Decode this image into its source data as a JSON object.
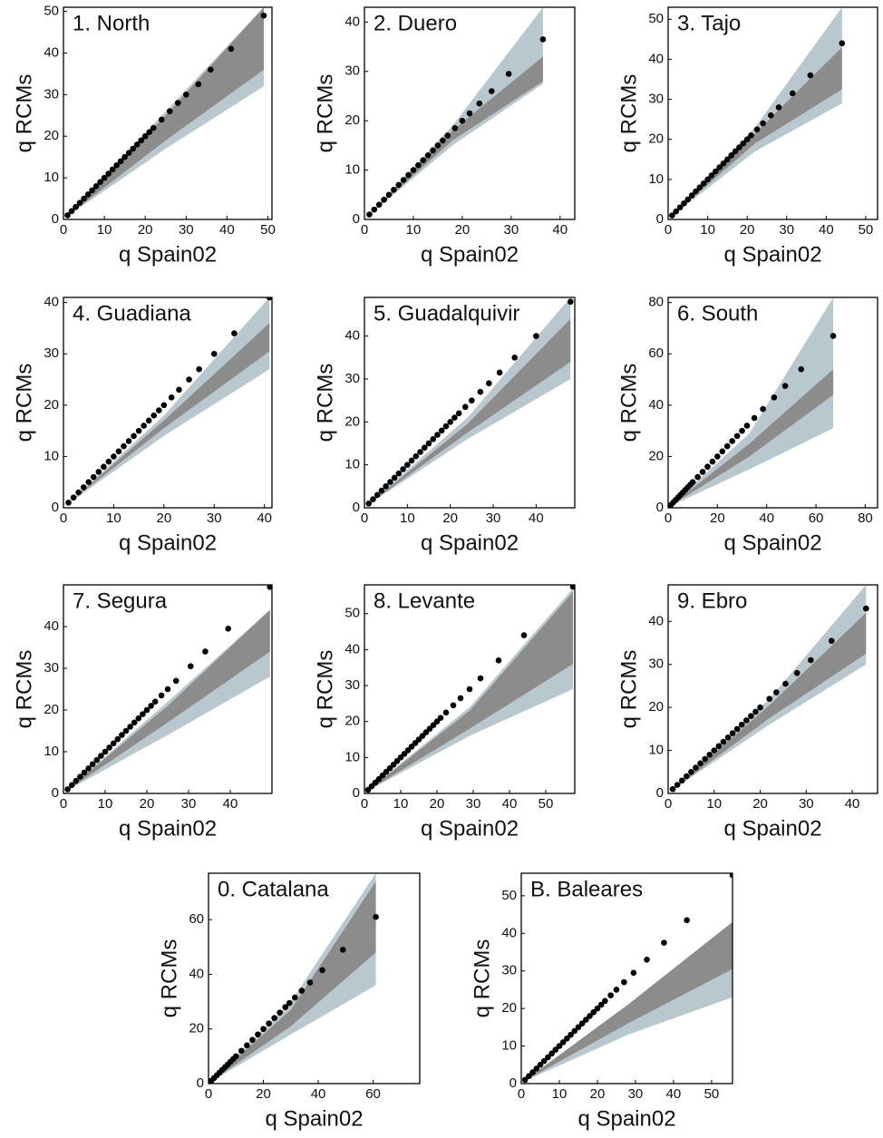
{
  "chart_data": [
    {
      "type": "scatter",
      "title": "1. North",
      "xlabel": "q Spain02",
      "ylabel": "q RCMs",
      "xlim": [
        0,
        51
      ],
      "ylim": [
        0,
        51
      ],
      "xticks": [
        0,
        10,
        20,
        30,
        40,
        50
      ],
      "yticks": [
        0,
        10,
        20,
        30,
        40,
        50
      ],
      "color": "#000000",
      "x": [
        1,
        2,
        3,
        4,
        5,
        6,
        7,
        8,
        9,
        10,
        11,
        12,
        13,
        14,
        15,
        16,
        17,
        18,
        19,
        20,
        21,
        22,
        24,
        26,
        28,
        30,
        33,
        36,
        41,
        49
      ],
      "y": [
        1,
        2,
        3,
        4,
        5,
        6,
        7,
        8,
        9,
        10,
        11,
        12,
        13,
        14,
        15,
        16,
        17,
        18,
        19,
        20,
        21,
        22,
        24,
        26,
        28,
        30,
        32.5,
        36,
        41,
        49
      ],
      "bands": [
        {
          "color": "#b9c8cf",
          "x": [
            0.5,
            25,
            49
          ],
          "lower": [
            0.5,
            17,
            32
          ],
          "upper": [
            0.5,
            26,
            51
          ]
        },
        {
          "color": "#8c8c8c",
          "x": [
            0.5,
            25,
            49
          ],
          "lower": [
            0.5,
            19,
            36
          ],
          "upper": [
            0.5,
            25,
            51
          ]
        }
      ]
    },
    {
      "type": "scatter",
      "title": "2. Duero",
      "xlabel": "q Spain02",
      "ylabel": "q RCMs",
      "xlim": [
        0,
        43
      ],
      "ylim": [
        0,
        43
      ],
      "xticks": [
        0,
        10,
        20,
        30,
        40
      ],
      "yticks": [
        0,
        10,
        20,
        30,
        40
      ],
      "color": "#000000",
      "x": [
        1,
        2,
        3,
        4,
        5,
        6,
        7,
        8,
        9,
        10,
        11,
        12,
        13,
        14,
        15,
        16,
        17,
        18.5,
        20,
        21.5,
        23.5,
        26,
        29.5,
        36.5
      ],
      "y": [
        1,
        2,
        3,
        4,
        5,
        6,
        7,
        8,
        9,
        10,
        11,
        12,
        13,
        14,
        15,
        16,
        17,
        18.5,
        20,
        21.5,
        23.5,
        26,
        29.5,
        36.5
      ],
      "bands": [
        {
          "color": "#b9c8cf",
          "x": [
            0.5,
            18,
            36.5
          ],
          "lower": [
            0.5,
            15,
            27.5
          ],
          "upper": [
            0.5,
            19,
            43
          ]
        },
        {
          "color": "#8c8c8c",
          "x": [
            0.5,
            18,
            36.5
          ],
          "lower": [
            0.5,
            16,
            28
          ],
          "upper": [
            0.5,
            18,
            33
          ]
        }
      ]
    },
    {
      "type": "scatter",
      "title": "3. Tajo",
      "xlabel": "q Spain02",
      "ylabel": "q RCMs",
      "xlim": [
        0,
        53
      ],
      "ylim": [
        0,
        53
      ],
      "xticks": [
        0,
        10,
        20,
        30,
        40,
        50
      ],
      "yticks": [
        0,
        10,
        20,
        30,
        40,
        50
      ],
      "color": "#000000",
      "x": [
        1,
        2,
        3,
        4,
        5,
        6,
        7,
        8,
        9,
        10,
        11,
        12,
        13,
        14,
        15,
        16,
        17,
        18,
        19,
        20,
        21,
        22.5,
        24,
        26,
        28,
        31.5,
        36,
        44
      ],
      "y": [
        1,
        2,
        3,
        4,
        5,
        6,
        7,
        8,
        9,
        10,
        11,
        12,
        13,
        14,
        15,
        16,
        17,
        18,
        19,
        20,
        21,
        22.5,
        24,
        26,
        28,
        31.5,
        36,
        44
      ],
      "bands": [
        {
          "color": "#b9c8cf",
          "x": [
            0.5,
            22,
            44
          ],
          "lower": [
            0.5,
            17,
            29
          ],
          "upper": [
            0.5,
            23,
            53
          ]
        },
        {
          "color": "#8c8c8c",
          "x": [
            0.5,
            22,
            44
          ],
          "lower": [
            0.5,
            19,
            32.5
          ],
          "upper": [
            0.5,
            21.5,
            43
          ]
        }
      ]
    },
    {
      "type": "scatter",
      "title": "4. Guadiana",
      "xlabel": "q Spain02",
      "ylabel": "q RCMs",
      "xlim": [
        0,
        41.5
      ],
      "ylim": [
        0,
        41
      ],
      "xticks": [
        0,
        10,
        20,
        30,
        40
      ],
      "yticks": [
        0,
        10,
        20,
        30,
        40
      ],
      "color": "#000000",
      "x": [
        1,
        2,
        3,
        4,
        5,
        6,
        7,
        8,
        9,
        10,
        11,
        12,
        13,
        14,
        15,
        16,
        17,
        18,
        19,
        20,
        21.5,
        23,
        25,
        27,
        30,
        34,
        41
      ],
      "y": [
        1,
        2,
        3,
        4,
        5,
        6,
        7,
        8,
        9,
        10,
        11,
        12,
        13,
        14,
        15,
        16,
        17,
        18,
        19,
        20,
        21.5,
        23,
        25,
        27,
        30,
        34,
        41
      ],
      "bands": [
        {
          "color": "#b9c8cf",
          "x": [
            0.5,
            20,
            41
          ],
          "lower": [
            0.5,
            14,
            27
          ],
          "upper": [
            0.5,
            18,
            41
          ]
        },
        {
          "color": "#8c8c8c",
          "x": [
            0.5,
            20,
            41
          ],
          "lower": [
            0.5,
            15.5,
            30.5
          ],
          "upper": [
            0.5,
            17,
            36
          ]
        }
      ]
    },
    {
      "type": "scatter",
      "title": "5. Guadalquivir",
      "xlabel": "q Spain02",
      "ylabel": "q RCMs",
      "xlim": [
        0,
        49
      ],
      "ylim": [
        0,
        49
      ],
      "xticks": [
        0,
        10,
        20,
        30,
        40
      ],
      "yticks": [
        0,
        10,
        20,
        30,
        40
      ],
      "color": "#000000",
      "x": [
        1,
        2,
        3,
        4,
        5,
        6,
        7,
        8,
        9,
        10,
        11,
        12,
        13,
        14,
        15,
        16,
        17,
        18,
        19,
        20,
        21,
        22,
        23.5,
        25,
        27,
        29,
        31.5,
        35,
        40,
        48
      ],
      "y": [
        1,
        2,
        3,
        4,
        5,
        6,
        7,
        8,
        9,
        10,
        11,
        12,
        13,
        14,
        15,
        16,
        17,
        18,
        19,
        20,
        21,
        22,
        23.5,
        25,
        27,
        29,
        31.5,
        35,
        40,
        48
      ],
      "bands": [
        {
          "color": "#b9c8cf",
          "x": [
            0.5,
            24,
            48
          ],
          "lower": [
            0.5,
            16,
            30
          ],
          "upper": [
            0.5,
            21,
            49
          ]
        },
        {
          "color": "#8c8c8c",
          "x": [
            0.5,
            24,
            48
          ],
          "lower": [
            0.5,
            17.5,
            34
          ],
          "upper": [
            0.5,
            19.5,
            44
          ]
        }
      ]
    },
    {
      "type": "scatter",
      "title": "6. South",
      "xlabel": "q Spain02",
      "ylabel": "q RCMs",
      "xlim": [
        0,
        85
      ],
      "ylim": [
        0,
        82
      ],
      "xticks": [
        0,
        20,
        40,
        60,
        80
      ],
      "yticks": [
        0,
        20,
        40,
        60,
        80
      ],
      "color": "#000000",
      "x": [
        1,
        2,
        3,
        4,
        5,
        6,
        7,
        8,
        9,
        10,
        12,
        14,
        16,
        18,
        20,
        22,
        24,
        26,
        28,
        30,
        32,
        35,
        38.5,
        43,
        47.5,
        54,
        67
      ],
      "y": [
        1,
        2,
        3,
        4,
        5,
        6,
        7,
        8,
        9,
        10,
        12,
        14,
        16,
        18,
        20,
        22,
        24,
        26,
        28,
        30,
        32,
        35,
        38.5,
        43,
        47.5,
        54,
        67
      ],
      "bands": [
        {
          "color": "#b9c8cf",
          "x": [
            0.5,
            33,
            67
          ],
          "lower": [
            0.5,
            15,
            31
          ],
          "upper": [
            0.5,
            29,
            82
          ]
        },
        {
          "color": "#8c8c8c",
          "x": [
            0.5,
            33,
            67
          ],
          "lower": [
            0.5,
            20,
            44
          ],
          "upper": [
            0.5,
            25,
            54
          ]
        }
      ]
    },
    {
      "type": "scatter",
      "title": "7. Segura",
      "xlabel": "q Spain02",
      "ylabel": "q RCMs",
      "xlim": [
        0,
        50
      ],
      "ylim": [
        0,
        50
      ],
      "xticks": [
        0,
        10,
        20,
        30,
        40
      ],
      "yticks": [
        0,
        10,
        20,
        30,
        40
      ],
      "color": "#000000",
      "x": [
        1,
        2,
        3,
        4,
        5,
        6,
        7,
        8,
        9,
        10,
        11,
        12,
        13,
        14,
        15,
        16,
        17,
        18,
        19,
        20,
        21,
        22,
        23.5,
        25,
        27,
        30.5,
        34,
        39.5,
        49.5
      ],
      "y": [
        1,
        2,
        3,
        4,
        5,
        6,
        7,
        8,
        9,
        10,
        11,
        12,
        13,
        14,
        15,
        16,
        17,
        18,
        19,
        20,
        21,
        22,
        23.5,
        25,
        27,
        30.5,
        34,
        39.5,
        49.5
      ],
      "bands": [
        {
          "color": "#b9c8cf",
          "x": [
            0.5,
            25,
            49.5
          ],
          "lower": [
            0.5,
            14,
            28
          ],
          "upper": [
            0.5,
            22,
            44
          ]
        },
        {
          "color": "#8c8c8c",
          "x": [
            0.5,
            25,
            49.5
          ],
          "lower": [
            0.5,
            17,
            34
          ],
          "upper": [
            0.5,
            21,
            44
          ]
        }
      ]
    },
    {
      "type": "scatter",
      "title": "8. Levante",
      "xlabel": "q Spain02",
      "ylabel": "q RCMs",
      "xlim": [
        0,
        58
      ],
      "ylim": [
        0,
        58
      ],
      "xticks": [
        0,
        10,
        20,
        30,
        40,
        50
      ],
      "yticks": [
        0,
        10,
        20,
        30,
        40,
        50
      ],
      "color": "#000000",
      "x": [
        1,
        2,
        3,
        4,
        5,
        6,
        7,
        8,
        9,
        10,
        11,
        12,
        13,
        14,
        15,
        16,
        17,
        18,
        19,
        20,
        21,
        22.5,
        24.5,
        26.5,
        29,
        32,
        37,
        44,
        57.5
      ],
      "y": [
        1,
        2,
        3,
        4,
        5,
        6,
        7,
        8,
        9,
        10,
        11,
        12,
        13,
        14,
        15,
        16,
        17,
        18,
        19,
        20,
        21,
        22.5,
        24.5,
        26.5,
        29,
        32,
        37,
        44,
        57.5
      ],
      "bands": [
        {
          "color": "#b9c8cf",
          "x": [
            0.5,
            29,
            57.5
          ],
          "lower": [
            0.5,
            16,
            29
          ],
          "upper": [
            0.5,
            24,
            57
          ]
        },
        {
          "color": "#8c8c8c",
          "x": [
            0.5,
            29,
            57.5
          ],
          "lower": [
            0.5,
            18,
            36
          ],
          "upper": [
            0.5,
            23,
            56
          ]
        }
      ]
    },
    {
      "type": "scatter",
      "title": "9. Ebro",
      "xlabel": "q Spain02",
      "ylabel": "q RCMs",
      "xlim": [
        0,
        45.5
      ],
      "ylim": [
        0,
        48.5
      ],
      "xticks": [
        0,
        10,
        20,
        30,
        40
      ],
      "yticks": [
        0,
        10,
        20,
        30,
        40
      ],
      "color": "#000000",
      "x": [
        1,
        2,
        3,
        4,
        5,
        6,
        7,
        8,
        9,
        10,
        11,
        12,
        13,
        14,
        15,
        16,
        17,
        18,
        19,
        20,
        22,
        23.5,
        25.5,
        28,
        31,
        35.5,
        43
      ],
      "y": [
        1,
        2,
        3,
        4,
        5,
        6,
        7,
        8,
        9,
        10,
        11,
        12,
        13,
        14,
        15,
        16,
        17,
        18,
        19,
        20,
        22,
        23.5,
        25.5,
        28,
        31,
        35.5,
        43
      ],
      "bands": [
        {
          "color": "#b9c8cf",
          "x": [
            0.5,
            22,
            43
          ],
          "lower": [
            0.5,
            16,
            30
          ],
          "upper": [
            0.5,
            22,
            48.5
          ]
        },
        {
          "color": "#8c8c8c",
          "x": [
            0.5,
            22,
            43
          ],
          "lower": [
            0.5,
            17.5,
            32.5
          ],
          "upper": [
            0.5,
            20.5,
            42
          ]
        }
      ]
    },
    {
      "type": "scatter",
      "title": "0. Catalana",
      "xlabel": "q Spain02",
      "ylabel": "q RCMs",
      "xlim": [
        0,
        77
      ],
      "ylim": [
        0,
        77
      ],
      "xticks": [
        0,
        20,
        40,
        60
      ],
      "yticks": [
        0,
        20,
        40,
        60
      ],
      "color": "#000000",
      "x": [
        1,
        2,
        3,
        4,
        5,
        6,
        7,
        8,
        9,
        10,
        12,
        14,
        16,
        18,
        20,
        22,
        24,
        26,
        28,
        29.5,
        31.5,
        34,
        37,
        41.5,
        49,
        61
      ],
      "y": [
        1,
        2,
        3,
        4,
        5,
        6,
        7,
        8,
        9,
        10,
        12,
        14,
        16,
        18,
        20,
        22,
        24,
        26,
        28,
        29.5,
        31.5,
        34,
        37,
        41.5,
        49,
        61
      ],
      "bands": [
        {
          "color": "#b9c8cf",
          "x": [
            0.5,
            30,
            61
          ],
          "lower": [
            0.5,
            18,
            36
          ],
          "upper": [
            0.5,
            30,
            77
          ]
        },
        {
          "color": "#8c8c8c",
          "x": [
            0.5,
            30,
            61
          ],
          "lower": [
            0.5,
            21,
            48
          ],
          "upper": [
            0.5,
            27,
            74
          ]
        }
      ]
    },
    {
      "type": "scatter",
      "title": "B. Baleares",
      "xlabel": "q Spain02",
      "ylabel": "q RCMs",
      "xlim": [
        0,
        55.5
      ],
      "ylim": [
        0,
        56
      ],
      "xticks": [
        0,
        10,
        20,
        30,
        40,
        50
      ],
      "yticks": [
        0,
        10,
        20,
        30,
        40,
        50
      ],
      "color": "#000000",
      "x": [
        1,
        2,
        3,
        4,
        5,
        6,
        7,
        8,
        9,
        10,
        11,
        12,
        13,
        14,
        15,
        16,
        17,
        18,
        19,
        20,
        21,
        22,
        23.5,
        25,
        27,
        29.5,
        33,
        37.5,
        43.5,
        55.5
      ],
      "y": [
        1,
        2,
        3,
        4,
        5,
        6,
        7,
        8,
        9,
        10,
        11,
        12,
        13,
        14,
        15,
        16,
        17,
        18,
        19,
        20,
        21,
        22,
        23.5,
        25,
        27,
        29.5,
        33,
        37.5,
        43.5,
        55.5
      ],
      "bands": [
        {
          "color": "#b9c8cf",
          "x": [
            0.5,
            28,
            55.5
          ],
          "lower": [
            0.5,
            13,
            23
          ],
          "upper": [
            0.5,
            21,
            43
          ]
        },
        {
          "color": "#8c8c8c",
          "x": [
            0.5,
            28,
            55.5
          ],
          "lower": [
            0.5,
            16,
            30.5
          ],
          "upper": [
            0.5,
            21,
            43
          ]
        }
      ]
    }
  ]
}
